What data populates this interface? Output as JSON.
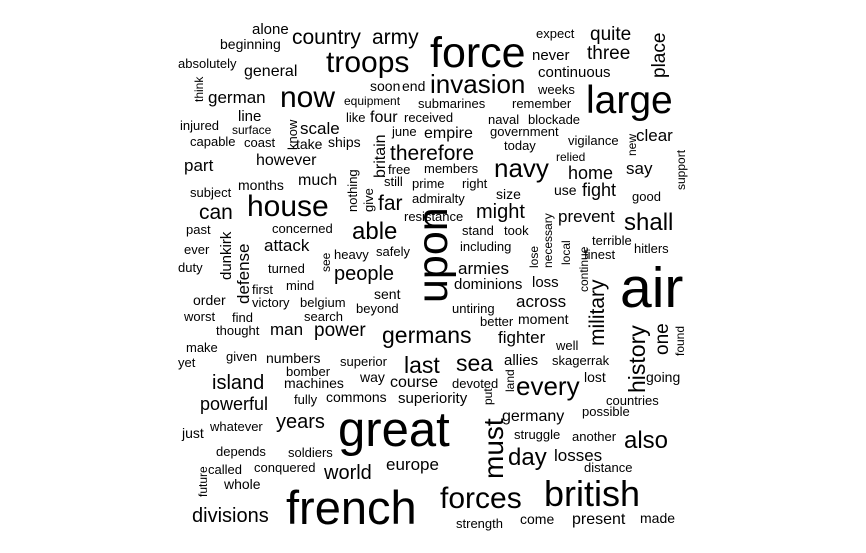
{
  "words": [
    {
      "id": "alone",
      "text": "alone"
    },
    {
      "id": "country",
      "text": "country"
    },
    {
      "id": "army",
      "text": "army"
    },
    {
      "id": "force",
      "text": "force"
    },
    {
      "id": "expect",
      "text": "expect"
    },
    {
      "id": "quite",
      "text": "quite"
    },
    {
      "id": "place",
      "text": "place"
    },
    {
      "id": "beginning",
      "text": "beginning"
    },
    {
      "id": "never",
      "text": "never"
    },
    {
      "id": "three",
      "text": "three"
    },
    {
      "id": "absolutely",
      "text": "absolutely"
    },
    {
      "id": "troops",
      "text": "troops"
    },
    {
      "id": "general",
      "text": "general"
    },
    {
      "id": "continuous",
      "text": "continuous"
    },
    {
      "id": "think",
      "text": "think"
    },
    {
      "id": "soon",
      "text": "soon"
    },
    {
      "id": "end",
      "text": "end"
    },
    {
      "id": "invasion",
      "text": "invasion"
    },
    {
      "id": "weeks",
      "text": "weeks"
    },
    {
      "id": "large",
      "text": "large"
    },
    {
      "id": "german",
      "text": "german"
    },
    {
      "id": "now",
      "text": "now"
    },
    {
      "id": "equipment",
      "text": "equipment"
    },
    {
      "id": "submarines",
      "text": "submarines"
    },
    {
      "id": "remember",
      "text": "remember"
    },
    {
      "id": "line",
      "text": "line"
    },
    {
      "id": "like",
      "text": "like"
    },
    {
      "id": "four",
      "text": "four"
    },
    {
      "id": "received",
      "text": "received"
    },
    {
      "id": "naval",
      "text": "naval"
    },
    {
      "id": "blockade",
      "text": "blockade"
    },
    {
      "id": "injured",
      "text": "injured"
    },
    {
      "id": "know",
      "text": "know"
    },
    {
      "id": "scale",
      "text": "scale"
    },
    {
      "id": "june",
      "text": "june"
    },
    {
      "id": "empire",
      "text": "empire"
    },
    {
      "id": "government",
      "text": "government"
    },
    {
      "id": "capable",
      "text": "capable"
    },
    {
      "id": "surface",
      "text": "surface"
    },
    {
      "id": "coast",
      "text": "coast"
    },
    {
      "id": "take",
      "text": "take"
    },
    {
      "id": "ships",
      "text": "ships"
    },
    {
      "id": "britain",
      "text": "britain"
    },
    {
      "id": "today",
      "text": "today"
    },
    {
      "id": "vigilance",
      "text": "vigilance"
    },
    {
      "id": "new",
      "text": "new"
    },
    {
      "id": "clear",
      "text": "clear"
    },
    {
      "id": "therefore",
      "text": "therefore"
    },
    {
      "id": "relied",
      "text": "relied"
    },
    {
      "id": "support",
      "text": "support"
    },
    {
      "id": "part",
      "text": "part"
    },
    {
      "id": "however",
      "text": "however"
    },
    {
      "id": "free",
      "text": "free"
    },
    {
      "id": "members",
      "text": "members"
    },
    {
      "id": "navy",
      "text": "navy"
    },
    {
      "id": "say",
      "text": "say"
    },
    {
      "id": "much",
      "text": "much"
    },
    {
      "id": "still",
      "text": "still"
    },
    {
      "id": "prime",
      "text": "prime"
    },
    {
      "id": "right",
      "text": "right"
    },
    {
      "id": "home",
      "text": "home"
    },
    {
      "id": "months",
      "text": "months"
    },
    {
      "id": "nothing",
      "text": "nothing"
    },
    {
      "id": "subject",
      "text": "subject"
    },
    {
      "id": "give",
      "text": "give"
    },
    {
      "id": "admiralty",
      "text": "admiralty"
    },
    {
      "id": "size",
      "text": "size"
    },
    {
      "id": "use",
      "text": "use"
    },
    {
      "id": "fight",
      "text": "fight"
    },
    {
      "id": "good",
      "text": "good"
    },
    {
      "id": "house",
      "text": "house"
    },
    {
      "id": "far",
      "text": "far"
    },
    {
      "id": "can",
      "text": "can"
    },
    {
      "id": "might",
      "text": "might"
    },
    {
      "id": "prevent",
      "text": "prevent"
    },
    {
      "id": "resistance",
      "text": "resistance"
    },
    {
      "id": "necessary",
      "text": "necessary"
    },
    {
      "id": "shall",
      "text": "shall"
    },
    {
      "id": "past",
      "text": "past"
    },
    {
      "id": "concerned",
      "text": "concerned"
    },
    {
      "id": "able",
      "text": "able"
    },
    {
      "id": "upon",
      "text": "upon"
    },
    {
      "id": "stand",
      "text": "stand"
    },
    {
      "id": "took",
      "text": "took"
    },
    {
      "id": "local",
      "text": "local"
    },
    {
      "id": "terrible",
      "text": "terrible"
    },
    {
      "id": "ever",
      "text": "ever"
    },
    {
      "id": "dunkirk",
      "text": "dunkirk"
    },
    {
      "id": "attack",
      "text": "attack"
    },
    {
      "id": "heavy",
      "text": "heavy"
    },
    {
      "id": "safely",
      "text": "safely"
    },
    {
      "id": "including",
      "text": "including"
    },
    {
      "id": "lose",
      "text": "lose"
    },
    {
      "id": "continue",
      "text": "continue"
    },
    {
      "id": "finest",
      "text": "finest"
    },
    {
      "id": "hitlers",
      "text": "hitlers"
    },
    {
      "id": "duty",
      "text": "duty"
    },
    {
      "id": "turned",
      "text": "turned"
    },
    {
      "id": "see",
      "text": "see"
    },
    {
      "id": "people",
      "text": "people"
    },
    {
      "id": "armies",
      "text": "armies"
    },
    {
      "id": "defense",
      "text": "defense"
    },
    {
      "id": "first",
      "text": "first"
    },
    {
      "id": "mind",
      "text": "mind"
    },
    {
      "id": "dominions",
      "text": "dominions"
    },
    {
      "id": "loss",
      "text": "loss"
    },
    {
      "id": "air",
      "text": "air"
    },
    {
      "id": "sent",
      "text": "sent"
    },
    {
      "id": "military",
      "text": "military"
    },
    {
      "id": "order",
      "text": "order"
    },
    {
      "id": "victory",
      "text": "victory"
    },
    {
      "id": "belgium",
      "text": "belgium"
    },
    {
      "id": "across",
      "text": "across"
    },
    {
      "id": "worst",
      "text": "worst"
    },
    {
      "id": "find",
      "text": "find"
    },
    {
      "id": "beyond",
      "text": "beyond"
    },
    {
      "id": "untiring",
      "text": "untiring"
    },
    {
      "id": "search",
      "text": "search"
    },
    {
      "id": "better",
      "text": "better"
    },
    {
      "id": "moment",
      "text": "moment"
    },
    {
      "id": "thought",
      "text": "thought"
    },
    {
      "id": "man",
      "text": "man"
    },
    {
      "id": "power",
      "text": "power"
    },
    {
      "id": "germans",
      "text": "germans"
    },
    {
      "id": "fighter",
      "text": "fighter"
    },
    {
      "id": "history",
      "text": "history"
    },
    {
      "id": "one",
      "text": "one"
    },
    {
      "id": "found",
      "text": "found"
    },
    {
      "id": "make",
      "text": "make"
    },
    {
      "id": "well",
      "text": "well"
    },
    {
      "id": "given",
      "text": "given"
    },
    {
      "id": "numbers",
      "text": "numbers"
    },
    {
      "id": "superior",
      "text": "superior"
    },
    {
      "id": "last",
      "text": "last"
    },
    {
      "id": "sea",
      "text": "sea"
    },
    {
      "id": "allies",
      "text": "allies"
    },
    {
      "id": "skagerrak",
      "text": "skagerrak"
    },
    {
      "id": "yet",
      "text": "yet"
    },
    {
      "id": "bomber",
      "text": "bomber"
    },
    {
      "id": "going",
      "text": "going"
    },
    {
      "id": "island",
      "text": "island"
    },
    {
      "id": "machines",
      "text": "machines"
    },
    {
      "id": "way",
      "text": "way"
    },
    {
      "id": "course",
      "text": "course"
    },
    {
      "id": "devoted",
      "text": "devoted"
    },
    {
      "id": "land",
      "text": "land"
    },
    {
      "id": "every",
      "text": "every"
    },
    {
      "id": "lost",
      "text": "lost"
    },
    {
      "id": "commons",
      "text": "commons"
    },
    {
      "id": "put",
      "text": "put"
    },
    {
      "id": "superiority",
      "text": "superiority"
    },
    {
      "id": "countries",
      "text": "countries"
    },
    {
      "id": "powerful",
      "text": "powerful"
    },
    {
      "id": "fully",
      "text": "fully"
    },
    {
      "id": "possible",
      "text": "possible"
    },
    {
      "id": "great",
      "text": "great"
    },
    {
      "id": "germany",
      "text": "germany"
    },
    {
      "id": "must",
      "text": "must"
    },
    {
      "id": "years",
      "text": "years"
    },
    {
      "id": "whatever",
      "text": "whatever"
    },
    {
      "id": "just",
      "text": "just"
    },
    {
      "id": "struggle",
      "text": "struggle"
    },
    {
      "id": "another",
      "text": "another"
    },
    {
      "id": "also",
      "text": "also"
    },
    {
      "id": "depends",
      "text": "depends"
    },
    {
      "id": "soldiers",
      "text": "soldiers"
    },
    {
      "id": "day",
      "text": "day"
    },
    {
      "id": "losses",
      "text": "losses"
    },
    {
      "id": "europe",
      "text": "europe"
    },
    {
      "id": "distance",
      "text": "distance"
    },
    {
      "id": "called",
      "text": "called"
    },
    {
      "id": "conquered",
      "text": "conquered"
    },
    {
      "id": "world",
      "text": "world"
    },
    {
      "id": "future",
      "text": "future"
    },
    {
      "id": "whole",
      "text": "whole"
    },
    {
      "id": "forces",
      "text": "forces"
    },
    {
      "id": "british",
      "text": "british"
    },
    {
      "id": "french",
      "text": "french"
    },
    {
      "id": "divisions",
      "text": "divisions"
    },
    {
      "id": "present",
      "text": "present"
    },
    {
      "id": "made",
      "text": "made"
    },
    {
      "id": "strength",
      "text": "strength"
    },
    {
      "id": "come",
      "text": "come"
    }
  ]
}
